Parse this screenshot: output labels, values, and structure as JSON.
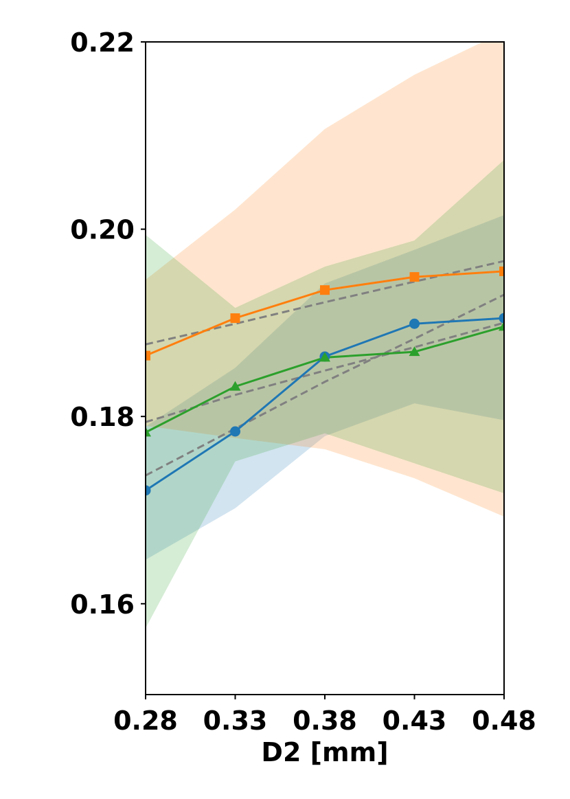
{
  "chart_data": {
    "type": "line",
    "title": "",
    "xlabel": "D2 [mm]",
    "ylabel": "",
    "x": [
      0.28,
      0.33,
      0.38,
      0.43,
      0.48
    ],
    "x_tick_labels": [
      "0.28",
      "0.33",
      "0.38",
      "0.43",
      "0.48"
    ],
    "y_ticks": [
      0.16,
      0.18,
      0.2,
      0.22
    ],
    "y_tick_labels": [
      "0.16",
      "0.18",
      "0.20",
      "0.22"
    ],
    "xlim": [
      0.28,
      0.48
    ],
    "ylim": [
      0.1503,
      0.22
    ],
    "grid": false,
    "series": [
      {
        "color": "#1f77b4",
        "marker": "circle",
        "values": [
          0.1721,
          0.1784,
          0.1864,
          0.1899,
          0.1905
        ],
        "band_lower": [
          0.1647,
          0.1702,
          0.1779,
          0.1814,
          0.1796
        ],
        "band_upper": [
          0.1789,
          0.1852,
          0.1942,
          0.1978,
          0.2015
        ],
        "trend": [
          0.1737,
          0.1787,
          0.1837,
          0.1883,
          0.193
        ]
      },
      {
        "color": "#ff7f0e",
        "marker": "square",
        "values": [
          0.1865,
          0.1905,
          0.1935,
          0.1949,
          0.1955
        ],
        "band_lower": [
          0.179,
          0.1777,
          0.1765,
          0.1734,
          0.1693
        ],
        "band_upper": [
          0.1946,
          0.2021,
          0.2107,
          0.2165,
          0.2211
        ],
        "trend": [
          0.1877,
          0.1899,
          0.1922,
          0.1944,
          0.1966
        ]
      },
      {
        "color": "#2ca02c",
        "marker": "triangle",
        "values": [
          0.1783,
          0.1832,
          0.1863,
          0.1869,
          0.1896
        ],
        "band_lower": [
          0.1574,
          0.1752,
          0.1782,
          0.175,
          0.1718
        ],
        "band_upper": [
          0.1994,
          0.1916,
          0.196,
          0.1988,
          0.2074
        ],
        "trend": [
          0.1794,
          0.1823,
          0.1849,
          0.1874,
          0.19
        ]
      }
    ],
    "trend_color": "#808080",
    "band_opacity": 0.2
  }
}
